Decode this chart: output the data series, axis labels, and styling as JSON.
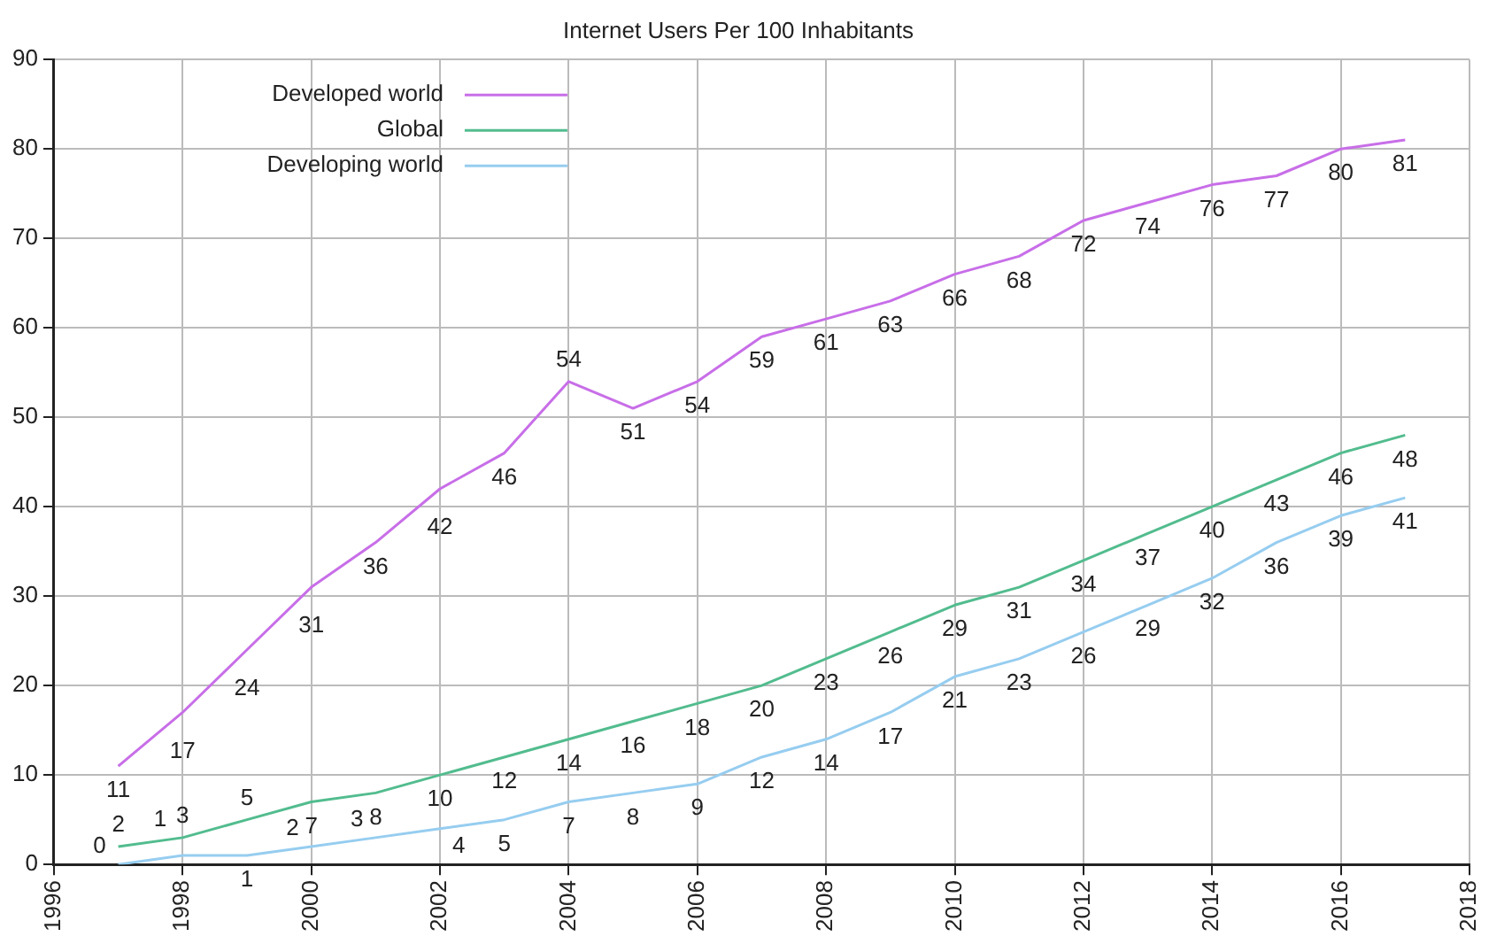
{
  "chart_data": {
    "type": "line",
    "title": "Internet Users Per 100 Inhabitants",
    "x": [
      1997,
      1998,
      1999,
      2000,
      2001,
      2002,
      2003,
      2004,
      2005,
      2006,
      2007,
      2008,
      2009,
      2010,
      2011,
      2012,
      2013,
      2014,
      2015,
      2016,
      2017
    ],
    "series": [
      {
        "name": "Developed world",
        "color": "#c86ee8",
        "values": [
          11,
          17,
          24,
          31,
          36,
          42,
          46,
          54,
          51,
          54,
          59,
          61,
          63,
          66,
          68,
          72,
          74,
          76,
          77,
          80,
          81
        ]
      },
      {
        "name": "Global",
        "color": "#52bc8e",
        "values": [
          2,
          3,
          5,
          7,
          8,
          10,
          12,
          14,
          16,
          18,
          20,
          23,
          26,
          29,
          31,
          34,
          37,
          40,
          43,
          46,
          48
        ]
      },
      {
        "name": "Developing world",
        "color": "#96cdf0",
        "values": [
          0,
          1,
          1,
          2,
          3,
          4,
          5,
          7,
          8,
          9,
          12,
          14,
          17,
          21,
          23,
          26,
          29,
          32,
          36,
          39,
          41
        ]
      }
    ],
    "xlim": [
      1996,
      2018
    ],
    "xticks": [
      1996,
      1998,
      2000,
      2002,
      2004,
      2006,
      2008,
      2010,
      2012,
      2014,
      2016,
      2018
    ],
    "ylim": [
      0,
      90
    ],
    "yticks": [
      0,
      10,
      20,
      30,
      40,
      50,
      60,
      70,
      80,
      90
    ],
    "grid": true,
    "legend": "top left",
    "data_labels": true,
    "marker": "none",
    "line_style": "solid"
  }
}
